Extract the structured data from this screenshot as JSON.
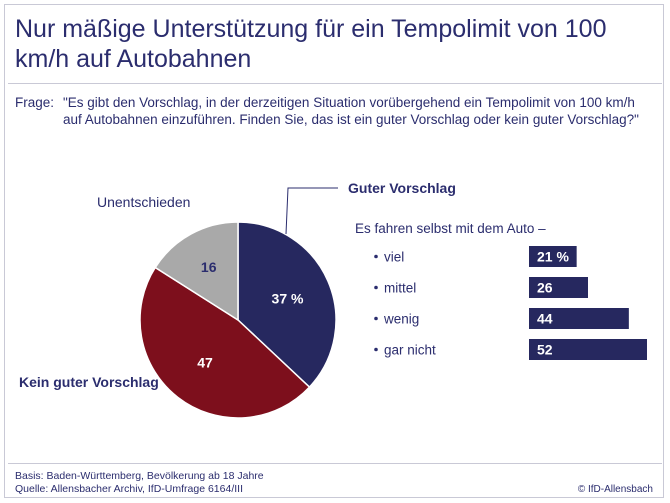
{
  "title": "Nur mäßige Unterstützung für ein Tempolimit von 100 km/h auf Autobahnen",
  "question": {
    "label": "Frage:",
    "text": "\"Es gibt den Vorschlag, in der derzeitigen Situation vorübergehend ein Tempolimit von 100 km/h auf Autobahnen einzuführen. Finden Sie, das ist ein guter Vorschlag oder kein guter Vorschlag?\""
  },
  "chart_data": [
    {
      "type": "pie",
      "title": "",
      "slices": [
        {
          "label": "Guter Vorschlag",
          "value": 37,
          "value_label": "37 %",
          "color": "#26285f"
        },
        {
          "label": "Kein guter Vorschlag",
          "value": 47,
          "value_label": "47",
          "color": "#7d0f1c"
        },
        {
          "label": "Unentschieden",
          "value": 16,
          "value_label": "16",
          "color": "#a9a9a9"
        }
      ]
    },
    {
      "type": "bar",
      "orientation": "horizontal",
      "title": "Es fahren selbst mit dem Auto –",
      "categories": [
        "viel",
        "mittel",
        "wenig",
        "gar nicht"
      ],
      "values": [
        21,
        26,
        44,
        52
      ],
      "value_labels": [
        "21 %",
        "26",
        "44",
        "52"
      ],
      "color": "#26285f",
      "xlim": [
        0,
        52
      ]
    }
  ],
  "footer": {
    "basis": "Basis: Baden-Württemberg, Bevölkerung ab 18 Jahre",
    "source": "Quelle: Allensbacher Archiv, IfD-Umfrage 6164/III"
  },
  "credit": "© IfD-Allensbach"
}
